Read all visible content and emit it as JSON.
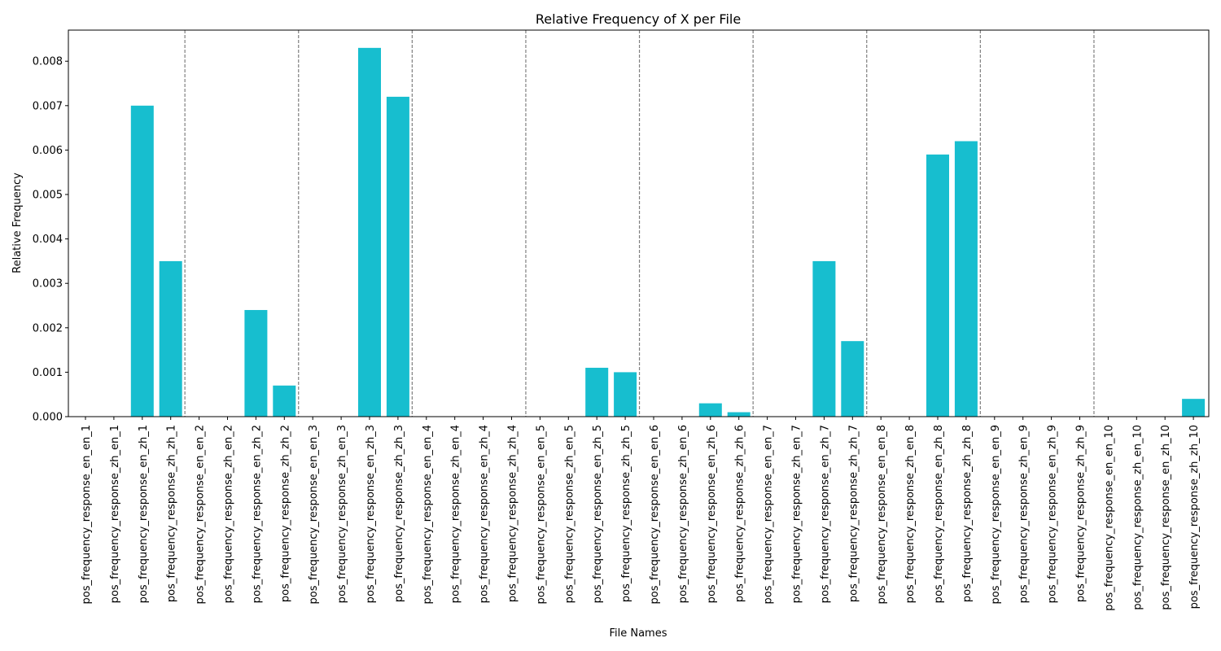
{
  "chart_data": {
    "type": "bar",
    "title": "Relative Frequency of X per File",
    "xlabel": "File Names",
    "ylabel": "Relative Frequency",
    "ylim": [
      0,
      0.0087
    ],
    "yticks": [
      "0.000",
      "0.001",
      "0.002",
      "0.003",
      "0.004",
      "0.005",
      "0.006",
      "0.007",
      "0.008"
    ],
    "bar_color": "#17becf",
    "separator_color": "#808080",
    "group_size": 4,
    "grid": false,
    "categories": [
      "pos_frequency_response_en_en_1",
      "pos_frequency_response_zh_en_1",
      "pos_frequency_response_en_zh_1",
      "pos_frequency_response_zh_zh_1",
      "pos_frequency_response_en_en_2",
      "pos_frequency_response_zh_en_2",
      "pos_frequency_response_en_zh_2",
      "pos_frequency_response_zh_zh_2",
      "pos_frequency_response_en_en_3",
      "pos_frequency_response_zh_en_3",
      "pos_frequency_response_en_zh_3",
      "pos_frequency_response_zh_zh_3",
      "pos_frequency_response_en_en_4",
      "pos_frequency_response_zh_en_4",
      "pos_frequency_response_en_zh_4",
      "pos_frequency_response_zh_zh_4",
      "pos_frequency_response_en_en_5",
      "pos_frequency_response_zh_en_5",
      "pos_frequency_response_en_zh_5",
      "pos_frequency_response_zh_zh_5",
      "pos_frequency_response_en_en_6",
      "pos_frequency_response_zh_en_6",
      "pos_frequency_response_en_zh_6",
      "pos_frequency_response_zh_zh_6",
      "pos_frequency_response_en_en_7",
      "pos_frequency_response_zh_en_7",
      "pos_frequency_response_en_zh_7",
      "pos_frequency_response_zh_zh_7",
      "pos_frequency_response_en_en_8",
      "pos_frequency_response_zh_en_8",
      "pos_frequency_response_en_zh_8",
      "pos_frequency_response_zh_zh_8",
      "pos_frequency_response_en_en_9",
      "pos_frequency_response_zh_en_9",
      "pos_frequency_response_en_zh_9",
      "pos_frequency_response_zh_zh_9",
      "pos_frequency_response_en_en_10",
      "pos_frequency_response_zh_en_10",
      "pos_frequency_response_en_zh_10",
      "pos_frequency_response_zh_zh_10"
    ],
    "values": [
      0,
      0,
      0.007,
      0.0035,
      0,
      0,
      0.0024,
      0.0007,
      0,
      0,
      0.0083,
      0.0072,
      0,
      0,
      0,
      0,
      0,
      0,
      0.0011,
      0.001,
      0,
      0,
      0.0003,
      0.0001,
      0,
      0,
      0.0035,
      0.0017,
      0,
      0,
      0.0059,
      0.0062,
      0,
      0,
      0,
      0,
      0,
      0,
      0,
      0.0004
    ]
  }
}
